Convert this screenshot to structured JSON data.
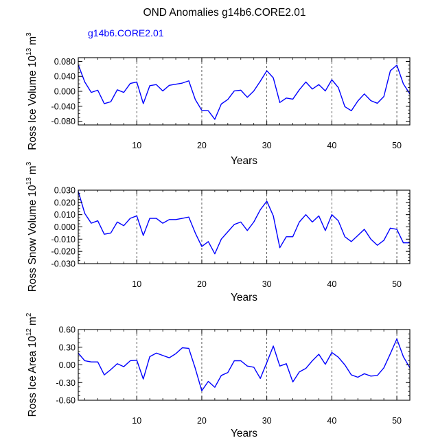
{
  "title": "OND Anomalies g14b6.CORE2.01",
  "legend": "g14b6.CORE2.01",
  "colors": {
    "line": "#0000ff",
    "axis": "#000000",
    "legend": "#0000ff"
  },
  "chart_data": [
    {
      "type": "line",
      "ylabel": "Ross Ice Volume 10",
      "ylabel_sup": "13",
      "ylabel_unit": "m",
      "ylabel_unit_sup": "3",
      "xlabel": "Years",
      "xlim": [
        1,
        52
      ],
      "ylim": [
        -0.09,
        0.09
      ],
      "yticks": [
        -0.08,
        -0.04,
        0.0,
        0.04,
        0.08
      ],
      "ytick_labels": [
        "-0.080",
        "-0.040",
        "0.000",
        "0.040",
        "0.080"
      ],
      "xticks": [
        10,
        20,
        30,
        40,
        50
      ],
      "xtick_labels": [
        "10",
        "20",
        "30",
        "40",
        "50"
      ],
      "ref_lines_x": [
        10,
        20,
        30,
        40,
        50
      ],
      "series": [
        {
          "name": "g14b6.CORE2.01",
          "x": [
            1,
            2,
            3,
            4,
            5,
            6,
            7,
            8,
            9,
            10,
            11,
            12,
            13,
            14,
            15,
            16,
            17,
            18,
            19,
            20,
            21,
            22,
            23,
            24,
            25,
            26,
            27,
            28,
            29,
            30,
            31,
            32,
            33,
            34,
            35,
            36,
            37,
            38,
            39,
            40,
            41,
            42,
            43,
            44,
            45,
            46,
            47,
            48,
            49,
            50,
            51,
            52
          ],
          "values": [
            0.071,
            0.025,
            -0.003,
            0.003,
            -0.033,
            -0.028,
            0.004,
            -0.003,
            0.021,
            0.025,
            -0.033,
            0.015,
            0.018,
            0.001,
            0.016,
            0.019,
            0.022,
            0.028,
            -0.022,
            -0.051,
            -0.052,
            -0.075,
            -0.034,
            -0.022,
            0.001,
            0.003,
            -0.016,
            0.001,
            0.027,
            0.055,
            0.036,
            -0.03,
            -0.018,
            -0.021,
            0.004,
            0.025,
            0.006,
            0.018,
            0.001,
            0.031,
            0.01,
            -0.041,
            -0.052,
            -0.026,
            -0.007,
            -0.025,
            -0.032,
            -0.014,
            0.055,
            0.07,
            0.02,
            -0.007
          ]
        }
      ]
    },
    {
      "type": "line",
      "ylabel": "Ross Snow Volume 10",
      "ylabel_sup": "13",
      "ylabel_unit": "m",
      "ylabel_unit_sup": "3",
      "xlabel": "Years",
      "xlim": [
        1,
        52
      ],
      "ylim": [
        -0.03,
        0.03
      ],
      "yticks": [
        -0.03,
        -0.02,
        -0.01,
        0.0,
        0.01,
        0.02,
        0.03
      ],
      "ytick_labels": [
        "-0.030",
        "-0.020",
        "-0.010",
        "0.000",
        "0.010",
        "0.020",
        "0.030"
      ],
      "xticks": [
        10,
        20,
        30,
        40,
        50
      ],
      "xtick_labels": [
        "10",
        "20",
        "30",
        "40",
        "50"
      ],
      "ref_lines_x": [
        10,
        20,
        30,
        40,
        50
      ],
      "series": [
        {
          "name": "g14b6.CORE2.01",
          "x": [
            1,
            2,
            3,
            4,
            5,
            6,
            7,
            8,
            9,
            10,
            11,
            12,
            13,
            14,
            15,
            16,
            17,
            18,
            19,
            20,
            21,
            22,
            23,
            24,
            25,
            26,
            27,
            28,
            29,
            30,
            31,
            32,
            33,
            34,
            35,
            36,
            37,
            38,
            39,
            40,
            41,
            42,
            43,
            44,
            45,
            46,
            47,
            48,
            49,
            50,
            51,
            52
          ],
          "values": [
            0.029,
            0.011,
            0.003,
            0.005,
            -0.006,
            -0.005,
            0.004,
            0.001,
            0.007,
            0.009,
            -0.007,
            0.007,
            0.007,
            0.003,
            0.006,
            0.006,
            0.007,
            0.008,
            -0.005,
            -0.016,
            -0.012,
            -0.022,
            -0.01,
            -0.004,
            0.002,
            0.004,
            -0.003,
            0.004,
            0.014,
            0.021,
            0.009,
            -0.017,
            -0.008,
            -0.008,
            0.004,
            0.01,
            0.004,
            0.009,
            -0.003,
            0.01,
            0.005,
            -0.008,
            -0.012,
            -0.007,
            -0.002,
            -0.01,
            -0.015,
            -0.011,
            -0.001,
            -0.002,
            -0.013,
            -0.013
          ]
        }
      ]
    },
    {
      "type": "line",
      "ylabel": "Ross Ice Area 10",
      "ylabel_sup": "12",
      "ylabel_unit": "m",
      "ylabel_unit_sup": "2",
      "xlabel": "Years",
      "xlim": [
        1,
        52
      ],
      "ylim": [
        -0.6,
        0.6
      ],
      "yticks": [
        -0.6,
        -0.3,
        0.0,
        0.3,
        0.6
      ],
      "ytick_labels": [
        "-0.60",
        "-0.30",
        "0.00",
        "0.30",
        "0.60"
      ],
      "xticks": [
        10,
        20,
        30,
        40,
        50
      ],
      "xtick_labels": [
        "10",
        "20",
        "30",
        "40",
        "50"
      ],
      "ref_lines_x": [
        10,
        20,
        30,
        40,
        50
      ],
      "series": [
        {
          "name": "g14b6.CORE2.01",
          "x": [
            1,
            2,
            3,
            4,
            5,
            6,
            7,
            8,
            9,
            10,
            11,
            12,
            13,
            14,
            15,
            16,
            17,
            18,
            19,
            20,
            21,
            22,
            23,
            24,
            25,
            26,
            27,
            28,
            29,
            30,
            31,
            32,
            33,
            34,
            35,
            36,
            37,
            38,
            39,
            40,
            41,
            42,
            43,
            44,
            45,
            46,
            47,
            48,
            49,
            50,
            51,
            52
          ],
          "values": [
            0.2,
            0.07,
            0.05,
            0.05,
            -0.17,
            -0.08,
            0.02,
            -0.03,
            0.07,
            0.08,
            -0.24,
            0.14,
            0.2,
            0.16,
            0.12,
            0.19,
            0.29,
            0.28,
            -0.06,
            -0.44,
            -0.28,
            -0.38,
            -0.18,
            -0.13,
            0.07,
            0.07,
            -0.02,
            -0.04,
            -0.23,
            0.04,
            0.32,
            -0.02,
            0.02,
            -0.29,
            -0.12,
            -0.06,
            0.07,
            0.18,
            0.01,
            0.21,
            0.13,
            0.0,
            -0.17,
            -0.21,
            -0.15,
            -0.19,
            -0.18,
            -0.05,
            0.19,
            0.44,
            0.14,
            -0.05
          ]
        }
      ]
    }
  ]
}
